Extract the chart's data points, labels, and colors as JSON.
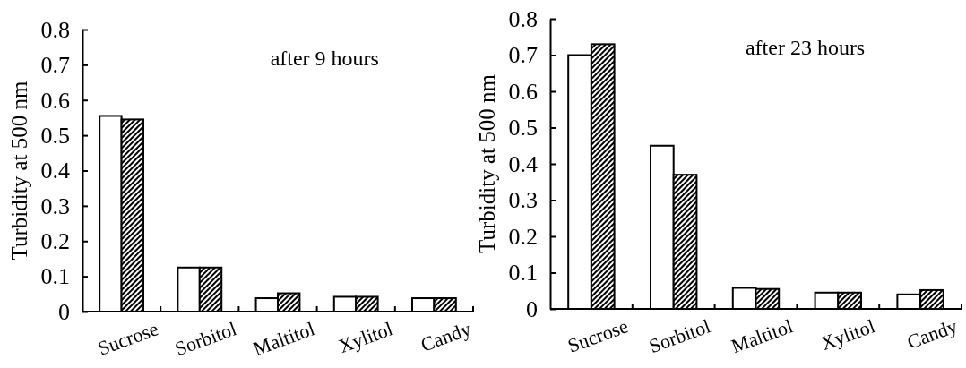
{
  "chart_data": [
    {
      "type": "bar",
      "title": "after 9 hours",
      "ylabel": "Turbidity at 500 nm",
      "categories": [
        "Sucrose",
        "Sorbitol",
        "Maltitol",
        "Xylitol",
        "Candy"
      ],
      "series": [
        {
          "color": "#ffffff",
          "values": [
            0.555,
            0.125,
            0.038,
            0.042,
            0.038
          ]
        },
        {
          "color": "#000000",
          "values": [
            0.545,
            0.125,
            0.052,
            0.042,
            0.038
          ]
        }
      ],
      "ylim": [
        0,
        0.8
      ],
      "yticks": [
        {
          "value": 0,
          "label": "0"
        },
        0.1,
        0.2,
        0.3,
        0.4,
        0.5,
        0.6,
        0.7,
        0.8
      ],
      "grid": false,
      "legend": false
    },
    {
      "type": "bar",
      "title": "after 23 hours",
      "ylabel": "Turbidity at 500 nm",
      "categories": [
        "Sucrose",
        "Sorbitol",
        "Maltitol",
        "Xylitol",
        "Candy"
      ],
      "series": [
        {
          "color": "#ffffff",
          "values": [
            0.7,
            0.45,
            0.058,
            0.045,
            0.04
          ]
        },
        {
          "color": "#000000",
          "values": [
            0.73,
            0.37,
            0.055,
            0.045,
            0.052
          ]
        }
      ],
      "ylim": [
        0,
        0.8
      ],
      "yticks": [
        {
          "value": 0,
          "label": "0"
        },
        0.1,
        0.2,
        0.3,
        0.4,
        0.5,
        0.6,
        0.7,
        0.8
      ],
      "grid": false,
      "legend": false
    }
  ]
}
